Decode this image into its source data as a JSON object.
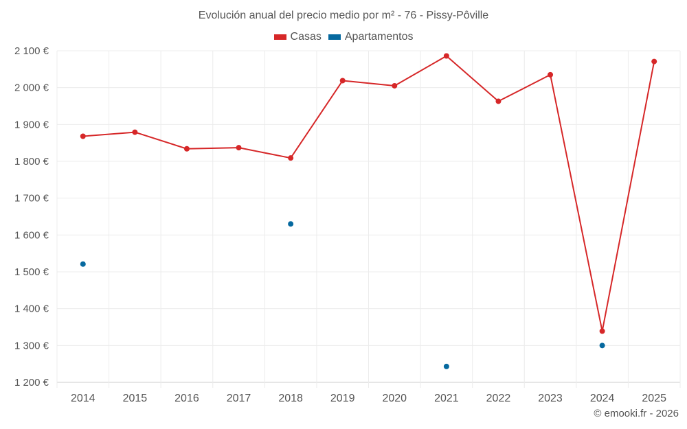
{
  "chart_data": {
    "type": "line",
    "title": "Evolución anual del precio medio por m² - 76 - Pissy-Pôville",
    "categories": [
      "2014",
      "2015",
      "2016",
      "2017",
      "2018",
      "2019",
      "2020",
      "2021",
      "2022",
      "2023",
      "2024",
      "2025"
    ],
    "ylim": [
      1200,
      2100
    ],
    "yticks": [
      1200,
      1300,
      1400,
      1500,
      1600,
      1700,
      1800,
      1900,
      2000,
      2100
    ],
    "ytick_labels": [
      "1 200 €",
      "1 300 €",
      "1 400 €",
      "1 500 €",
      "1 600 €",
      "1 700 €",
      "1 800 €",
      "1 900 €",
      "2 000 €",
      "2 100 €"
    ],
    "grid": true,
    "legend_position": "top-center",
    "series": [
      {
        "name": "Casas",
        "color": "#d62728",
        "line": true,
        "values": [
          1868,
          1879,
          1834,
          1837,
          1809,
          2019,
          2005,
          2086,
          1963,
          2035,
          1339,
          2071
        ]
      },
      {
        "name": "Apartamentos",
        "color": "#06699f",
        "line": false,
        "values": [
          1521,
          null,
          null,
          null,
          1630,
          null,
          null,
          1243,
          null,
          null,
          1300,
          null
        ]
      }
    ]
  },
  "credit": "© emooki.fr - 2026"
}
